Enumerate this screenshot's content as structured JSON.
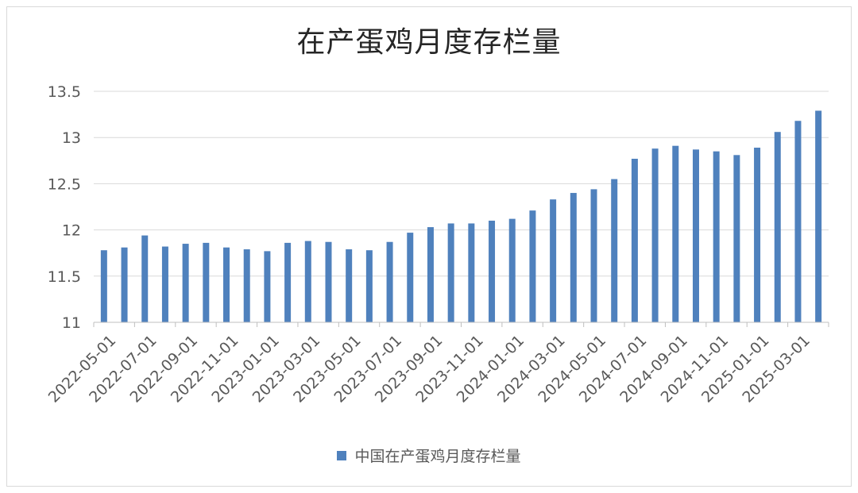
{
  "chart_data": {
    "type": "bar",
    "title": "在产蛋鸡月度存栏量",
    "xlabel": "",
    "ylabel": "",
    "ylim": [
      11,
      13.5
    ],
    "yticks": [
      "11",
      "11.5",
      "12",
      "12.5",
      "13",
      "13.5"
    ],
    "grid": true,
    "legend_position": "bottom",
    "color": "#4f81bd",
    "categories": [
      "2022-05-01",
      "2022-06-01",
      "2022-07-01",
      "2022-08-01",
      "2022-09-01",
      "2022-10-01",
      "2022-11-01",
      "2022-12-01",
      "2023-01-01",
      "2023-02-01",
      "2023-03-01",
      "2023-04-01",
      "2023-05-01",
      "2023-06-01",
      "2023-07-01",
      "2023-08-01",
      "2023-09-01",
      "2023-10-01",
      "2023-11-01",
      "2023-12-01",
      "2024-01-01",
      "2024-02-01",
      "2024-03-01",
      "2024-04-01",
      "2024-05-01",
      "2024-06-01",
      "2024-07-01",
      "2024-08-01",
      "2024-09-01",
      "2024-10-01",
      "2024-11-01",
      "2024-12-01",
      "2025-01-01",
      "2025-02-01",
      "2025-03-01",
      "2025-04-01"
    ],
    "tick_labels": [
      "2022-05-01",
      "2022-07-01",
      "2022-09-01",
      "2022-11-01",
      "2023-01-01",
      "2023-03-01",
      "2023-05-01",
      "2023-07-01",
      "2023-09-01",
      "2023-11-01",
      "2024-01-01",
      "2024-03-01",
      "2024-05-01",
      "2024-07-01",
      "2024-09-01",
      "2024-11-01",
      "2025-01-01",
      "2025-03-01"
    ],
    "series": [
      {
        "name": "中国在产蛋鸡月度存栏量",
        "values": [
          11.78,
          11.81,
          11.94,
          11.82,
          11.85,
          11.86,
          11.81,
          11.79,
          11.77,
          11.86,
          11.88,
          11.87,
          11.79,
          11.78,
          11.87,
          11.97,
          12.03,
          12.07,
          12.07,
          12.1,
          12.12,
          12.21,
          12.33,
          12.4,
          12.44,
          12.55,
          12.77,
          12.88,
          12.91,
          12.87,
          12.85,
          12.81,
          12.89,
          13.06,
          13.18,
          13.29
        ]
      }
    ]
  }
}
